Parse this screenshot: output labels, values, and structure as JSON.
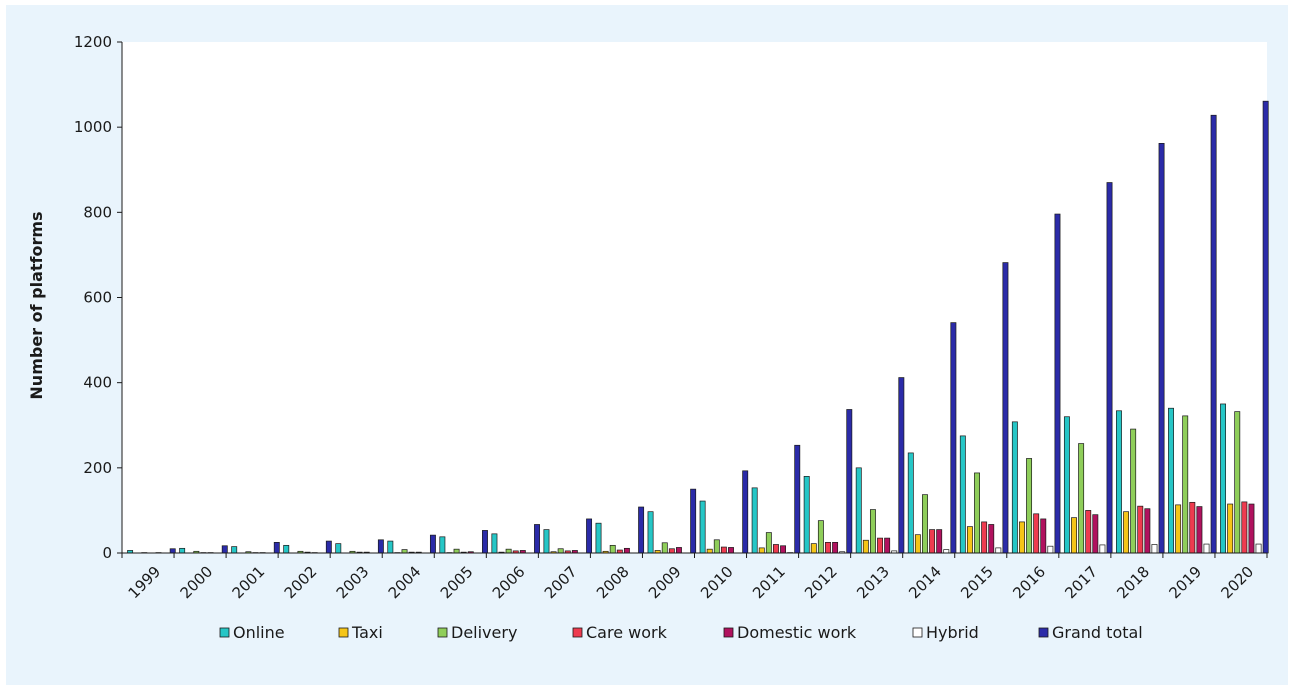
{
  "chart_data": {
    "type": "bar",
    "title": "",
    "xlabel": "",
    "ylabel": "Number of platforms",
    "ylim": [
      0,
      1200
    ],
    "yticks": [
      0,
      200,
      400,
      600,
      800,
      1000,
      1200
    ],
    "grid": false,
    "legend_position": "bottom",
    "categories": [
      "1999",
      "2000",
      "2001",
      "2002",
      "2003",
      "2004",
      "2005",
      "2006",
      "2007",
      "2008",
      "2009",
      "2010",
      "2011",
      "2012",
      "2013",
      "2014",
      "2015",
      "2016",
      "2017",
      "2018",
      "2019",
      "2020"
    ],
    "series": [
      {
        "name": "Online",
        "color": "#26c6c6",
        "values": [
          6,
          11,
          15,
          18,
          22,
          28,
          38,
          45,
          55,
          70,
          97,
          122,
          153,
          180,
          200,
          235,
          275,
          308,
          320,
          334,
          340,
          350
        ]
      },
      {
        "name": "Taxi",
        "color": "#f5c518",
        "values": [
          0,
          0,
          0,
          0,
          0,
          1,
          1,
          2,
          3,
          4,
          6,
          9,
          12,
          22,
          30,
          43,
          62,
          73,
          83,
          97,
          113,
          115
        ]
      },
      {
        "name": "Delivery",
        "color": "#8fce5a",
        "values": [
          1,
          4,
          3,
          4,
          4,
          8,
          9,
          9,
          10,
          18,
          24,
          31,
          48,
          76,
          102,
          137,
          188,
          222,
          257,
          291,
          322,
          332
        ]
      },
      {
        "name": "Care work",
        "color": "#ee3b4f",
        "values": [
          0,
          1,
          1,
          2,
          2,
          2,
          2,
          5,
          5,
          7,
          10,
          14,
          20,
          25,
          35,
          55,
          73,
          92,
          100,
          110,
          119,
          120
        ]
      },
      {
        "name": "Domestic work",
        "color": "#b0125e",
        "values": [
          1,
          1,
          1,
          1,
          2,
          2,
          3,
          6,
          6,
          11,
          13,
          13,
          17,
          25,
          35,
          55,
          67,
          80,
          90,
          104,
          109,
          115
        ]
      },
      {
        "name": "Hybrid",
        "color": "#ffffff",
        "values": [
          0,
          0,
          0,
          0,
          0,
          0,
          0,
          0,
          0,
          0,
          0,
          0,
          1,
          3,
          5,
          8,
          12,
          16,
          19,
          20,
          21,
          21
        ]
      },
      {
        "name": "Grand total",
        "color": "#2b2ba8",
        "values": [
          10,
          17,
          25,
          28,
          31,
          42,
          53,
          67,
          80,
          108,
          150,
          193,
          253,
          337,
          412,
          541,
          682,
          796,
          870,
          962,
          1028,
          1061
        ]
      }
    ]
  }
}
